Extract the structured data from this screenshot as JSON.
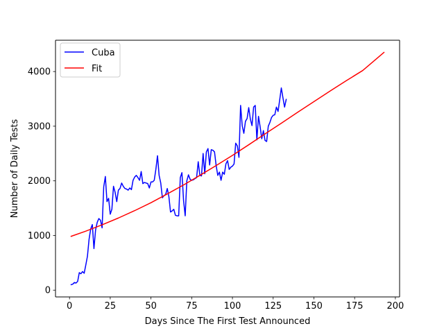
{
  "chart_data": {
    "type": "line",
    "title": "",
    "xlabel": "Days Since The First Test Announced",
    "ylabel": "Number of Daily Tests",
    "xlim": [
      -8.6,
      202.6
    ],
    "ylim": [
      -124,
      4573
    ],
    "xticks": [
      0,
      25,
      50,
      75,
      100,
      125,
      150,
      175,
      200
    ],
    "yticks": [
      0,
      1000,
      2000,
      3000,
      4000
    ],
    "grid": false,
    "legend_position": "upper-left",
    "series": [
      {
        "name": "Cuba",
        "color": "#0000ff",
        "points": [
          [
            1,
            100
          ],
          [
            2,
            110
          ],
          [
            3,
            140
          ],
          [
            4,
            130
          ],
          [
            5,
            160
          ],
          [
            6,
            320
          ],
          [
            7,
            300
          ],
          [
            8,
            340
          ],
          [
            9,
            310
          ],
          [
            10,
            460
          ],
          [
            11,
            620
          ],
          [
            12,
            930
          ],
          [
            13,
            1120
          ],
          [
            14,
            1200
          ],
          [
            15,
            760
          ],
          [
            16,
            1100
          ],
          [
            17,
            1240
          ],
          [
            18,
            1310
          ],
          [
            19,
            1280
          ],
          [
            20,
            1140
          ],
          [
            21,
            1890
          ],
          [
            22,
            2080
          ],
          [
            23,
            1620
          ],
          [
            24,
            1680
          ],
          [
            25,
            1390
          ],
          [
            26,
            1480
          ],
          [
            27,
            1900
          ],
          [
            28,
            1790
          ],
          [
            29,
            1620
          ],
          [
            30,
            1830
          ],
          [
            31,
            1860
          ],
          [
            32,
            1960
          ],
          [
            33,
            1900
          ],
          [
            34,
            1860
          ],
          [
            35,
            1850
          ],
          [
            36,
            1830
          ],
          [
            37,
            1870
          ],
          [
            38,
            1840
          ],
          [
            39,
            2010
          ],
          [
            40,
            2070
          ],
          [
            41,
            2100
          ],
          [
            42,
            2060
          ],
          [
            43,
            2010
          ],
          [
            44,
            2170
          ],
          [
            45,
            1950
          ],
          [
            46,
            1970
          ],
          [
            47,
            1960
          ],
          [
            48,
            1950
          ],
          [
            49,
            1870
          ],
          [
            50,
            1980
          ],
          [
            51,
            1980
          ],
          [
            52,
            2010
          ],
          [
            53,
            2210
          ],
          [
            54,
            2460
          ],
          [
            55,
            2100
          ],
          [
            56,
            1960
          ],
          [
            57,
            1690
          ],
          [
            58,
            1730
          ],
          [
            59,
            1750
          ],
          [
            60,
            1860
          ],
          [
            61,
            1710
          ],
          [
            62,
            1430
          ],
          [
            63,
            1450
          ],
          [
            64,
            1480
          ],
          [
            65,
            1370
          ],
          [
            66,
            1360
          ],
          [
            67,
            1360
          ],
          [
            68,
            2060
          ],
          [
            69,
            2150
          ],
          [
            70,
            1640
          ],
          [
            71,
            1360
          ],
          [
            72,
            2000
          ],
          [
            73,
            2110
          ],
          [
            74,
            2030
          ],
          [
            75,
            2010
          ],
          [
            76,
            2020
          ],
          [
            77,
            2040
          ],
          [
            78,
            2060
          ],
          [
            79,
            2350
          ],
          [
            80,
            2100
          ],
          [
            81,
            2090
          ],
          [
            82,
            2500
          ],
          [
            83,
            2130
          ],
          [
            84,
            2530
          ],
          [
            85,
            2590
          ],
          [
            86,
            2290
          ],
          [
            87,
            2570
          ],
          [
            88,
            2560
          ],
          [
            89,
            2530
          ],
          [
            90,
            2280
          ],
          [
            91,
            2100
          ],
          [
            92,
            2160
          ],
          [
            93,
            2010
          ],
          [
            94,
            2160
          ],
          [
            95,
            2120
          ],
          [
            96,
            2310
          ],
          [
            97,
            2370
          ],
          [
            98,
            2210
          ],
          [
            99,
            2250
          ],
          [
            100,
            2270
          ],
          [
            101,
            2310
          ],
          [
            102,
            2690
          ],
          [
            103,
            2640
          ],
          [
            104,
            2430
          ],
          [
            105,
            3380
          ],
          [
            106,
            3010
          ],
          [
            107,
            2870
          ],
          [
            108,
            3090
          ],
          [
            109,
            3140
          ],
          [
            110,
            3340
          ],
          [
            111,
            3130
          ],
          [
            112,
            3010
          ],
          [
            113,
            3350
          ],
          [
            114,
            3380
          ],
          [
            115,
            2750
          ],
          [
            116,
            3180
          ],
          [
            117,
            2990
          ],
          [
            118,
            2770
          ],
          [
            119,
            2920
          ],
          [
            120,
            2740
          ],
          [
            121,
            2720
          ],
          [
            122,
            3000
          ],
          [
            123,
            3070
          ],
          [
            124,
            3160
          ],
          [
            125,
            3200
          ],
          [
            126,
            3210
          ],
          [
            127,
            3350
          ],
          [
            128,
            3270
          ],
          [
            129,
            3480
          ],
          [
            130,
            3700
          ],
          [
            131,
            3520
          ],
          [
            132,
            3350
          ],
          [
            133,
            3490
          ]
        ]
      },
      {
        "name": "Fit",
        "color": "#ff0000",
        "points": [
          [
            1,
            985
          ],
          [
            10,
            1080
          ],
          [
            20,
            1195
          ],
          [
            30,
            1320
          ],
          [
            40,
            1455
          ],
          [
            50,
            1600
          ],
          [
            60,
            1760
          ],
          [
            70,
            1925
          ],
          [
            80,
            2100
          ],
          [
            90,
            2280
          ],
          [
            100,
            2465
          ],
          [
            110,
            2660
          ],
          [
            120,
            2860
          ],
          [
            130,
            3055
          ],
          [
            140,
            3255
          ],
          [
            150,
            3450
          ],
          [
            160,
            3645
          ],
          [
            170,
            3835
          ],
          [
            180,
            4020
          ],
          [
            193,
            4350
          ]
        ]
      }
    ]
  }
}
